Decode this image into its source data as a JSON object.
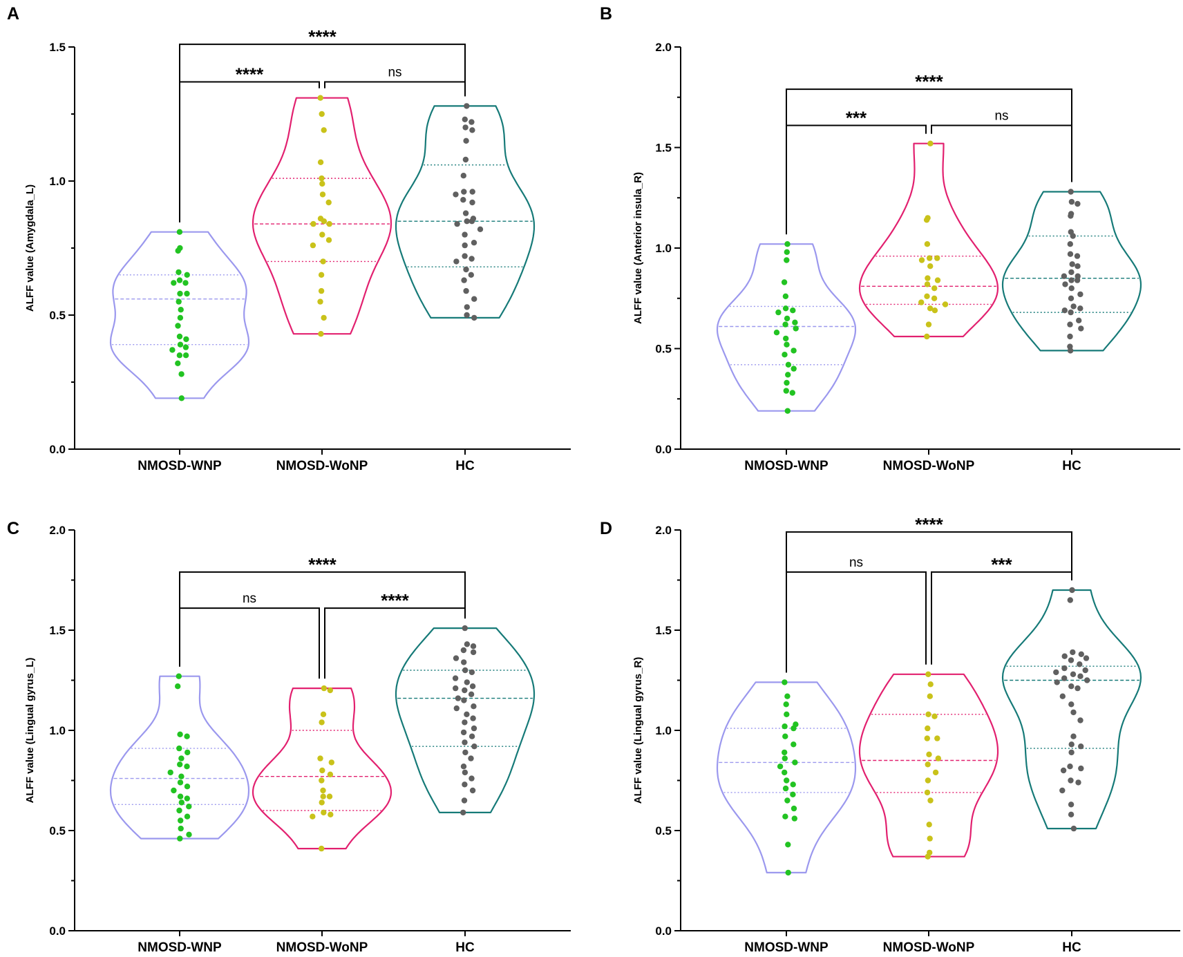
{
  "colors": {
    "NMOSD-WNP": {
      "outline": "#9b98ee",
      "point": "#22c322"
    },
    "NMOSD-WoNP": {
      "outline": "#e2206f",
      "point": "#c9c21a"
    },
    "HC": {
      "outline": "#167a78",
      "point": "#606060"
    },
    "axis": "#000000"
  },
  "chart_data": [
    {
      "panel": "A",
      "type": "violin",
      "ylabel": "ALFF value (Amygdala_L)",
      "categories": [
        "NMOSD-WNP",
        "NMOSD-WoNP",
        "HC"
      ],
      "ylim": [
        0,
        1.5
      ],
      "yticks": [
        "0.0",
        "0.5",
        "1.0",
        "1.5"
      ],
      "series": [
        {
          "name": "NMOSD-WNP",
          "min": 0.19,
          "max": 0.81,
          "q1": 0.39,
          "median": 0.56,
          "q3": 0.65,
          "points": [
            0.81,
            0.75,
            0.74,
            0.66,
            0.65,
            0.63,
            0.62,
            0.62,
            0.58,
            0.58,
            0.55,
            0.52,
            0.49,
            0.46,
            0.42,
            0.41,
            0.39,
            0.38,
            0.37,
            0.35,
            0.35,
            0.32,
            0.28,
            0.19
          ]
        },
        {
          "name": "NMOSD-WoNP",
          "min": 0.43,
          "max": 1.31,
          "q1": 0.7,
          "median": 0.84,
          "q3": 1.01,
          "points": [
            1.31,
            1.25,
            1.19,
            1.07,
            1.01,
            0.99,
            0.95,
            0.92,
            0.86,
            0.85,
            0.84,
            0.84,
            0.8,
            0.78,
            0.76,
            0.7,
            0.65,
            0.59,
            0.55,
            0.49,
            0.43
          ]
        },
        {
          "name": "HC",
          "min": 0.49,
          "max": 1.28,
          "q1": 0.68,
          "median": 0.85,
          "q3": 1.06,
          "points": [
            1.28,
            1.23,
            1.22,
            1.2,
            1.19,
            1.15,
            1.08,
            1.02,
            0.96,
            0.96,
            0.95,
            0.93,
            0.92,
            0.88,
            0.86,
            0.85,
            0.85,
            0.84,
            0.82,
            0.8,
            0.77,
            0.76,
            0.72,
            0.71,
            0.7,
            0.67,
            0.65,
            0.63,
            0.59,
            0.56,
            0.53,
            0.5,
            0.49
          ]
        }
      ],
      "comparisons": [
        {
          "from": 0,
          "to": 2,
          "y": 1.51,
          "label": "****"
        },
        {
          "from": 0,
          "to": 1,
          "y": 1.37,
          "label": "****"
        },
        {
          "from": 1,
          "to": 2,
          "y": 1.37,
          "label": "ns"
        }
      ]
    },
    {
      "panel": "B",
      "type": "violin",
      "ylabel": "ALFF value (Anterior insula_R)",
      "categories": [
        "NMOSD-WNP",
        "NMOSD-WoNP",
        "HC"
      ],
      "ylim": [
        0,
        2.0
      ],
      "yticks": [
        "0.0",
        "0.5",
        "1.0",
        "1.5",
        "2.0"
      ],
      "series": [
        {
          "name": "NMOSD-WNP",
          "min": 0.19,
          "max": 1.02,
          "q1": 0.42,
          "median": 0.61,
          "q3": 0.71,
          "points": [
            1.02,
            0.98,
            0.94,
            0.83,
            0.76,
            0.7,
            0.69,
            0.68,
            0.65,
            0.63,
            0.62,
            0.6,
            0.58,
            0.55,
            0.52,
            0.49,
            0.47,
            0.42,
            0.4,
            0.37,
            0.33,
            0.29,
            0.28,
            0.19
          ]
        },
        {
          "name": "NMOSD-WoNP",
          "min": 0.56,
          "max": 1.52,
          "q1": 0.72,
          "median": 0.81,
          "q3": 0.96,
          "points": [
            1.52,
            1.15,
            1.14,
            1.02,
            0.95,
            0.95,
            0.94,
            0.91,
            0.85,
            0.84,
            0.82,
            0.8,
            0.76,
            0.75,
            0.73,
            0.72,
            0.7,
            0.69,
            0.62,
            0.56
          ]
        },
        {
          "name": "HC",
          "min": 0.49,
          "max": 1.28,
          "q1": 0.68,
          "median": 0.85,
          "q3": 1.06,
          "points": [
            1.28,
            1.23,
            1.22,
            1.17,
            1.16,
            1.08,
            1.06,
            1.02,
            0.97,
            0.96,
            0.92,
            0.91,
            0.88,
            0.86,
            0.86,
            0.84,
            0.84,
            0.82,
            0.8,
            0.77,
            0.75,
            0.71,
            0.7,
            0.69,
            0.68,
            0.64,
            0.62,
            0.6,
            0.56,
            0.51,
            0.49
          ]
        }
      ],
      "comparisons": [
        {
          "from": 0,
          "to": 2,
          "y": 1.79,
          "label": "****"
        },
        {
          "from": 0,
          "to": 1,
          "y": 1.61,
          "label": "***"
        },
        {
          "from": 1,
          "to": 2,
          "y": 1.61,
          "label": "ns"
        }
      ]
    },
    {
      "panel": "C",
      "type": "violin",
      "ylabel": "ALFF value (Lingual gyrus_L)",
      "categories": [
        "NMOSD-WNP",
        "NMOSD-WoNP",
        "HC"
      ],
      "ylim": [
        0,
        2.0
      ],
      "yticks": [
        "0.0",
        "0.5",
        "1.0",
        "1.5",
        "2.0"
      ],
      "series": [
        {
          "name": "NMOSD-WNP",
          "min": 0.46,
          "max": 1.27,
          "q1": 0.63,
          "median": 0.76,
          "q3": 0.91,
          "points": [
            1.27,
            1.22,
            0.98,
            0.97,
            0.91,
            0.89,
            0.86,
            0.83,
            0.82,
            0.79,
            0.77,
            0.74,
            0.72,
            0.7,
            0.67,
            0.66,
            0.64,
            0.62,
            0.6,
            0.57,
            0.55,
            0.51,
            0.48,
            0.46
          ]
        },
        {
          "name": "NMOSD-WoNP",
          "min": 0.41,
          "max": 1.21,
          "q1": 0.6,
          "median": 0.77,
          "q3": 1.0,
          "points": [
            1.21,
            1.2,
            1.08,
            1.04,
            0.86,
            0.84,
            0.8,
            0.78,
            0.75,
            0.7,
            0.67,
            0.67,
            0.64,
            0.59,
            0.58,
            0.57,
            0.41
          ]
        },
        {
          "name": "HC",
          "min": 0.59,
          "max": 1.51,
          "q1": 0.92,
          "median": 1.16,
          "q3": 1.3,
          "points": [
            1.51,
            1.43,
            1.42,
            1.4,
            1.39,
            1.36,
            1.34,
            1.3,
            1.29,
            1.26,
            1.24,
            1.22,
            1.21,
            1.2,
            1.18,
            1.16,
            1.15,
            1.12,
            1.11,
            1.08,
            1.06,
            1.04,
            1.01,
            0.99,
            0.97,
            0.94,
            0.92,
            0.89,
            0.86,
            0.82,
            0.79,
            0.76,
            0.73,
            0.7,
            0.65,
            0.59
          ]
        }
      ],
      "comparisons": [
        {
          "from": 0,
          "to": 2,
          "y": 1.79,
          "label": "****"
        },
        {
          "from": 0,
          "to": 1,
          "y": 1.61,
          "label": "ns"
        },
        {
          "from": 1,
          "to": 2,
          "y": 1.61,
          "label": "****"
        }
      ]
    },
    {
      "panel": "D",
      "type": "violin",
      "ylabel": "ALFF value (Lingual gyrus_R)",
      "categories": [
        "NMOSD-WNP",
        "NMOSD-WoNP",
        "HC"
      ],
      "ylim": [
        0,
        2.0
      ],
      "yticks": [
        "0.0",
        "0.5",
        "1.0",
        "1.5",
        "2.0"
      ],
      "series": [
        {
          "name": "NMOSD-WNP",
          "min": 0.29,
          "max": 1.24,
          "q1": 0.69,
          "median": 0.84,
          "q3": 1.01,
          "points": [
            1.24,
            1.17,
            1.13,
            1.08,
            1.03,
            1.02,
            1.01,
            0.97,
            0.93,
            0.89,
            0.86,
            0.84,
            0.82,
            0.79,
            0.75,
            0.73,
            0.71,
            0.68,
            0.65,
            0.61,
            0.57,
            0.56,
            0.43,
            0.29
          ]
        },
        {
          "name": "NMOSD-WoNP",
          "min": 0.37,
          "max": 1.28,
          "q1": 0.69,
          "median": 0.85,
          "q3": 1.08,
          "points": [
            1.28,
            1.23,
            1.17,
            1.08,
            1.07,
            1.01,
            0.96,
            0.96,
            0.88,
            0.86,
            0.83,
            0.79,
            0.75,
            0.69,
            0.65,
            0.53,
            0.46,
            0.39,
            0.37
          ]
        },
        {
          "name": "HC",
          "min": 0.51,
          "max": 1.7,
          "q1": 0.91,
          "median": 1.25,
          "q3": 1.32,
          "points": [
            1.7,
            1.65,
            1.39,
            1.38,
            1.37,
            1.36,
            1.35,
            1.33,
            1.31,
            1.3,
            1.29,
            1.28,
            1.27,
            1.26,
            1.25,
            1.24,
            1.22,
            1.21,
            1.17,
            1.13,
            1.09,
            1.05,
            0.97,
            0.93,
            0.92,
            0.89,
            0.82,
            0.81,
            0.8,
            0.75,
            0.74,
            0.7,
            0.63,
            0.58,
            0.51
          ]
        }
      ],
      "comparisons": [
        {
          "from": 0,
          "to": 2,
          "y": 1.99,
          "label": "****"
        },
        {
          "from": 0,
          "to": 1,
          "y": 1.79,
          "label": "ns"
        },
        {
          "from": 1,
          "to": 2,
          "y": 1.79,
          "label": "***"
        }
      ]
    }
  ]
}
